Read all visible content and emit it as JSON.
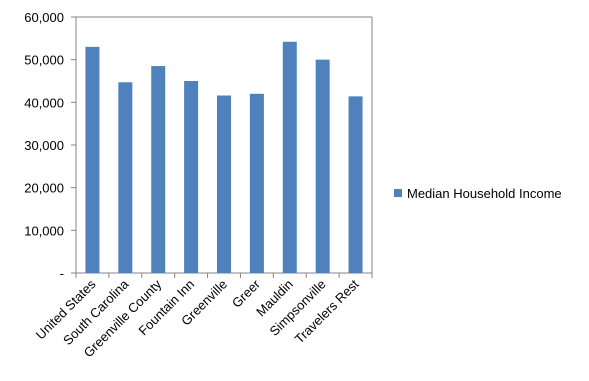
{
  "chart_data": {
    "type": "bar",
    "categories": [
      "United States",
      "South Carolina",
      "Greenville County",
      "Fountain Inn",
      "Greenville",
      "Greer",
      "Mauldin",
      "Simpsonville",
      "Travelers Rest"
    ],
    "series": [
      {
        "name": "Median Household Income",
        "values": [
          53000,
          44700,
          48500,
          45000,
          41600,
          42000,
          54200,
          50000,
          41400
        ],
        "color": "#4F81BD"
      }
    ],
    "y_tick_labels": [
      "-",
      "10,000",
      "20,000",
      "30,000",
      "40,000",
      "50,000",
      "60,000"
    ],
    "y_tick_values": [
      0,
      10000,
      20000,
      30000,
      40000,
      50000,
      60000
    ],
    "ylim": [
      0,
      60000
    ],
    "grid": false,
    "legend_position": "right"
  }
}
